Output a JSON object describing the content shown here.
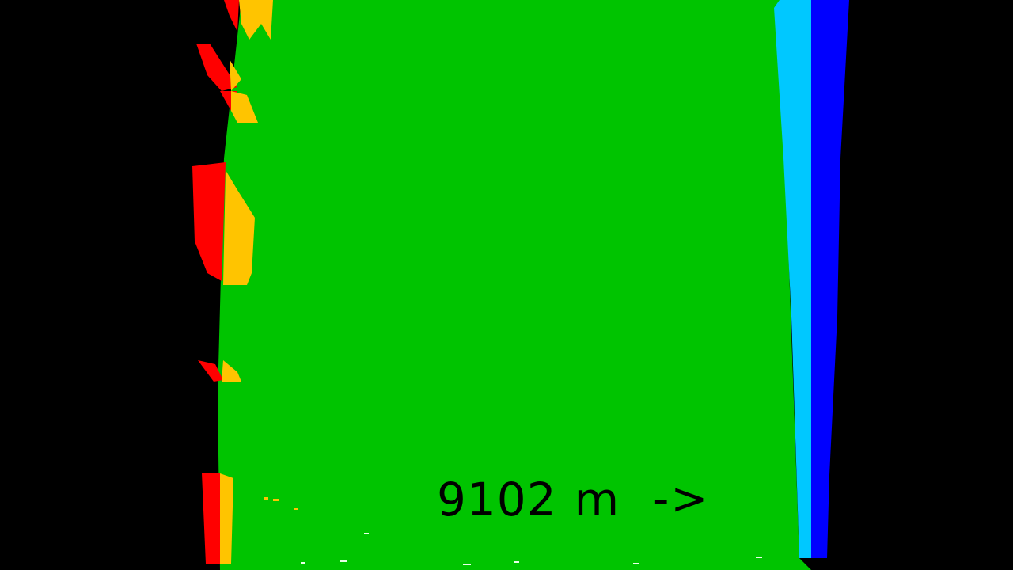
{
  "hud": {
    "distance_value": "9102",
    "distance_unit": "m",
    "direction_arrow": "->"
  },
  "colors": {
    "background": "#000000",
    "track": "#00c400",
    "left_edge_outer": "#ff0000",
    "left_edge_inner": "#ffc400",
    "right_edge_inner": "#00c8ff",
    "right_edge_outer": "#0000ff",
    "text": "#000000"
  },
  "icons": {
    "direction": "right-arrow-icon"
  }
}
